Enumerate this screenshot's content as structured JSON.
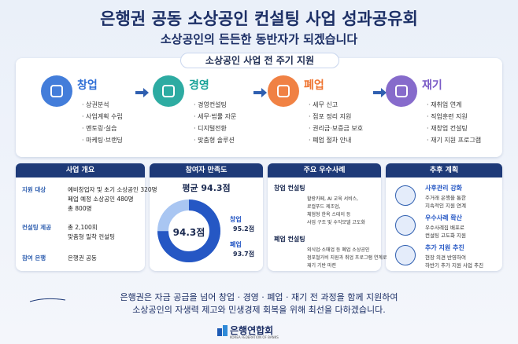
{
  "header": {
    "title": "은행권 공동 소상공인 컨설팅 사업 성과공유회",
    "subtitle": "소상공인의 든든한 동반자가 되겠습니다"
  },
  "lifecycle": {
    "title": "소상공인 사업 전 주기 지원",
    "stages": [
      {
        "name": "창업",
        "color": "#2f6fd6",
        "items": [
          "상권분석",
          "사업계획 수립",
          "멘토링·실습",
          "마케팅·브랜딩"
        ]
      },
      {
        "name": "경영",
        "color": "#17a398",
        "items": [
          "경영컨설팅",
          "세무·법률 자문",
          "디지털전환",
          "맞춤형 솔루션"
        ]
      },
      {
        "name": "폐업",
        "color": "#ef7430",
        "items": [
          "세무 신고",
          "점포 정리 지원",
          "권리금·보증금 보호",
          "폐업 절차 안내"
        ]
      },
      {
        "name": "재기",
        "color": "#7a5bc6",
        "items": [
          "재취업 연계",
          "직업훈련 지원",
          "재창업 컨설팅",
          "재기 지원 프로그램"
        ]
      }
    ]
  },
  "overview": {
    "title": "사업 개요",
    "rows": [
      {
        "label": "지원 대상",
        "lines": [
          "예비창업자 및 초기 소상공인 320명",
          "폐업 예정 소상공인 480명",
          "총 800명"
        ]
      },
      {
        "label": "컨설팅 제공",
        "lines": [
          "총 2,100회",
          "맞춤형 밀착 컨설팅"
        ]
      },
      {
        "label": "참여 은행",
        "lines": [
          "은행권 공동"
        ]
      }
    ]
  },
  "satisfaction": {
    "title": "참여자 만족도",
    "average": "평균 94.3점",
    "center": "94.3점",
    "legend": [
      {
        "name": "창업",
        "value": "95.2점"
      },
      {
        "name": "폐업",
        "value": "93.7점"
      }
    ]
  },
  "cases": {
    "title": "주요 우수사례",
    "items": [
      {
        "title": "창업 컨설팅",
        "lines": [
          "할랑카페, AI 교육 서비스,",
          "로컬푸드 제조업,",
          "체험형 한옥 스테이 등",
          "사업 구조 및 수익모델 고도화"
        ]
      },
      {
        "title": "폐업 컨설팅",
        "lines": [
          "외식업·소매업 등 폐업 소상공인",
          "점포철거비 지원과 취업 프로그램 연계로",
          "재기 기반 마련"
        ]
      }
    ]
  },
  "plans": {
    "title": "추후 계획",
    "items": [
      {
        "title": "사후관리 강화",
        "lines": [
          "주거래 은행을 통한",
          "지속적인 지원 연계"
        ]
      },
      {
        "title": "우수사례 확산",
        "lines": [
          "우수사례집 배포로",
          "컨설팅 고도화 지원"
        ]
      },
      {
        "title": "추가 지원 추진",
        "lines": [
          "현장 의견 반영하여",
          "하반기 추가 지원 사업 추진"
        ]
      }
    ]
  },
  "footer": {
    "quote": [
      "은행권은 자금 공급을 넘어 창업 · 경영 · 폐업 · 재기 전 과정을 함께 지원하여",
      "소상공인의 자생력 제고와 민생경제 회복을 위해 최선을 다하겠습니다."
    ],
    "logo": "은행연합회",
    "logo_sub": "KOREA FEDERATION OF BANKS"
  }
}
